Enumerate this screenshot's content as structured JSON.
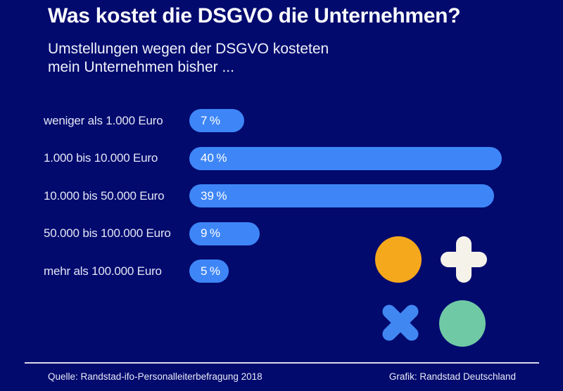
{
  "title": "Was kostet die DSGVO die Unternehmen?",
  "subtitle": {
    "line1": "Umstellungen wegen der DSGVO kosteten",
    "line2": "mein Unternehmen bisher ..."
  },
  "chart_data": {
    "type": "bar",
    "orientation": "horizontal",
    "title": "Was kostet die DSGVO die Unternehmen?",
    "subtitle": "Umstellungen wegen der DSGVO kosteten mein Unternehmen bisher ...",
    "categories": [
      "weniger als 1.000 Euro",
      "1.000 bis 10.000 Euro",
      "10.000 bis 50.000 Euro",
      "50.000 bis 100.000 Euro",
      "mehr als 100.000 Euro"
    ],
    "values": [
      7,
      40,
      39,
      9,
      5
    ],
    "value_labels": [
      "7 %",
      "40 %",
      "39 %",
      "9 %",
      "5 %"
    ],
    "unit": "%",
    "xlim": [
      0,
      45
    ],
    "grid": false,
    "legend": false,
    "bar_color": "#3E86F7",
    "background_color": "#020A6E",
    "label_color": "#E3E6F4",
    "value_color": "#FFFFFF"
  },
  "decorations": {
    "orange_circle_color": "#F6A81C",
    "plus_color": "#F5F2EA",
    "x_color": "#4187F2",
    "teal_circle_color": "#6FC9A5"
  },
  "footer": {
    "source": "Quelle: Randstad-ifo-Personalleiterbefragung 2018",
    "credit": "Grafik: Randstad Deutschland"
  }
}
